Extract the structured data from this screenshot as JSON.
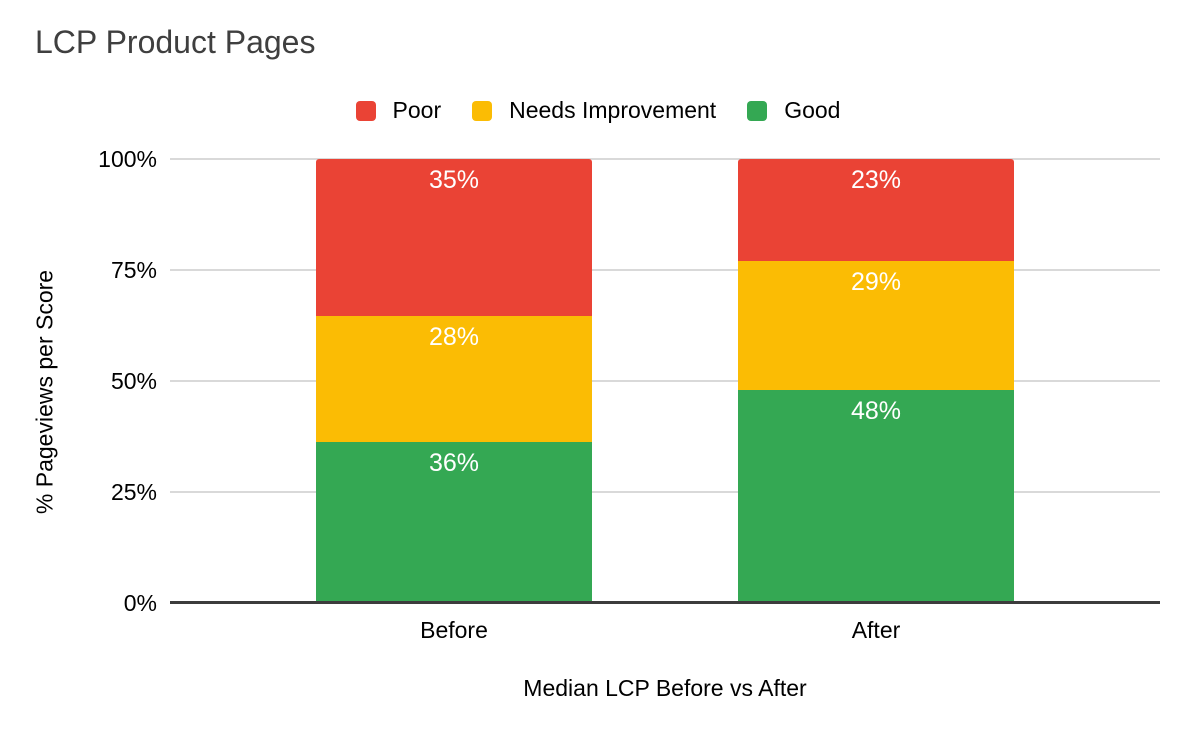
{
  "chart_data": {
    "type": "bar",
    "stacked": "percent",
    "title": "LCP Product Pages",
    "categories": [
      "Before",
      "After"
    ],
    "series": [
      {
        "name": "Good",
        "color": "#34A853",
        "values": [
          36,
          48
        ]
      },
      {
        "name": "Needs Improvement",
        "color": "#FBBC04",
        "values": [
          28,
          29
        ]
      },
      {
        "name": "Poor",
        "color": "#EA4335",
        "values": [
          35,
          23
        ]
      }
    ],
    "data_label_suffix": "%",
    "xlabel": "Median LCP Before vs After",
    "ylabel": "% Pageviews per Score",
    "y_ticks": [
      "0%",
      "25%",
      "50%",
      "75%",
      "100%"
    ],
    "ylim": [
      0,
      100
    ],
    "grid": true,
    "legend": {
      "position": "top",
      "entries": [
        "Poor",
        "Needs Improvement",
        "Good"
      ]
    },
    "colors": {
      "gridline": "#d9d9d9",
      "axis_line": "#3c3c3c",
      "title_text": "#3f3f3f",
      "axis_text": "#000000",
      "data_label_text": "#ffffff",
      "background": "#ffffff"
    }
  }
}
